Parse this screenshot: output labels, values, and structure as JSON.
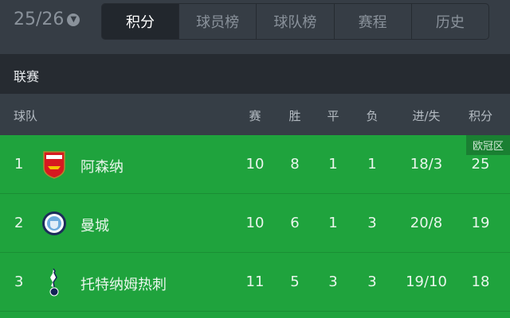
{
  "season": {
    "label": "25/26",
    "icon": "chevron-down-icon"
  },
  "tabs": [
    {
      "label": "积分",
      "active": true
    },
    {
      "label": "球员榜"
    },
    {
      "label": "球队榜"
    },
    {
      "label": "赛程"
    },
    {
      "label": "历史"
    }
  ],
  "league": "联赛",
  "columns": {
    "team": "球队",
    "played": "赛",
    "won": "胜",
    "drawn": "平",
    "lost": "负",
    "goals": "进/失",
    "points": "积分"
  },
  "rows": [
    {
      "rank": "1",
      "team": "阿森纳",
      "played": "10",
      "won": "8",
      "drawn": "1",
      "lost": "1",
      "goals": "18/3",
      "points": "25",
      "zone": "欧冠区",
      "badge": "arsenal-badge-icon"
    },
    {
      "rank": "2",
      "team": "曼城",
      "played": "10",
      "won": "6",
      "drawn": "1",
      "lost": "3",
      "goals": "20/8",
      "points": "19",
      "badge": "man-city-badge-icon"
    },
    {
      "rank": "3",
      "team": "托特纳姆热刺",
      "played": "11",
      "won": "5",
      "drawn": "3",
      "lost": "3",
      "goals": "19/10",
      "points": "18",
      "badge": "tottenham-badge-icon"
    }
  ],
  "colors": {
    "green": "#1fa33d",
    "dark": "#262b31",
    "header": "#363d45"
  }
}
